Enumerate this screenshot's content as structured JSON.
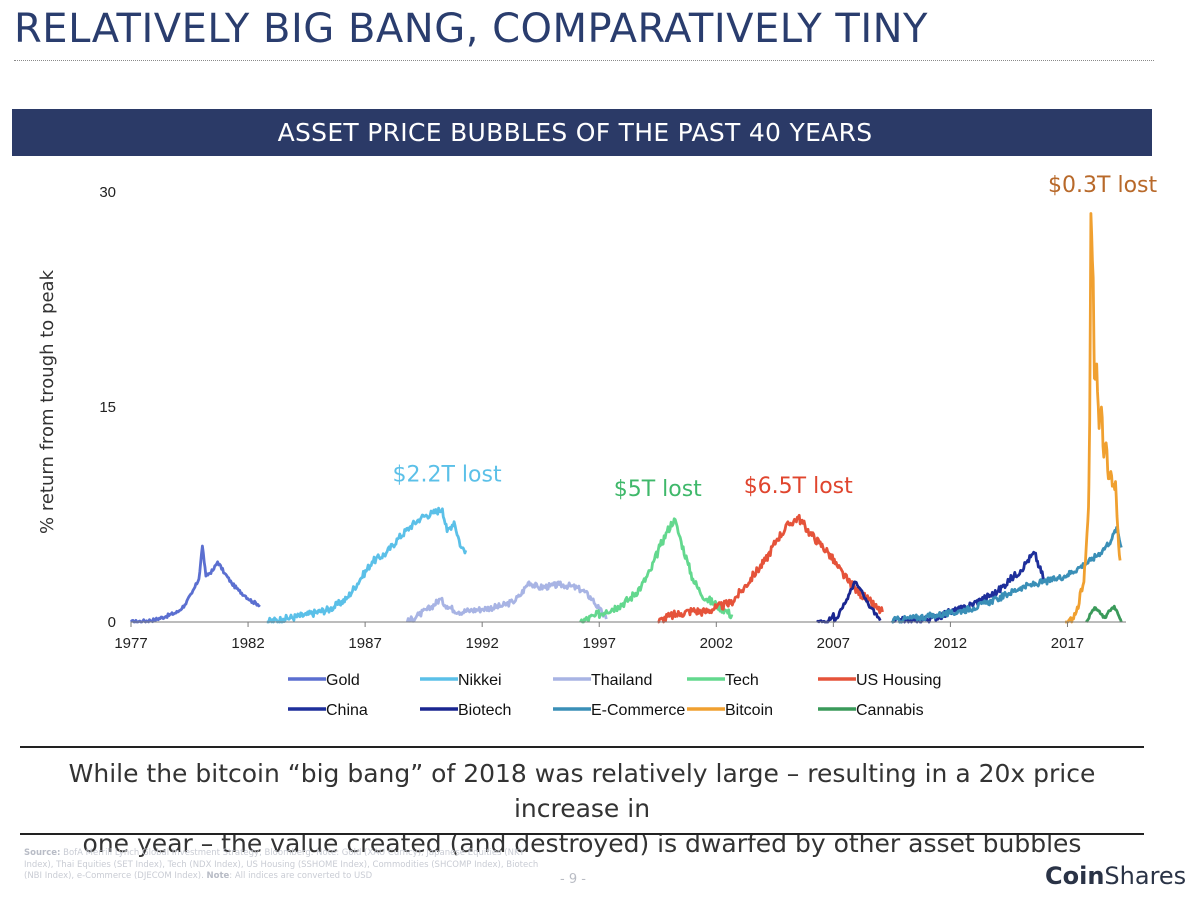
{
  "page": {
    "title": "RELATIVELY BIG BANG, COMPARATIVELY TINY",
    "banner": "ASSET PRICE BUBBLES OF THE PAST 40 YEARS",
    "caption_line1": "While the bitcoin “big bang” of 2018 was relatively large – resulting in a 20x price increase in",
    "caption_line2": "one year – the value created (and destroyed) is dwarfed by other asset bubbles",
    "source_label": "Source:",
    "source_text": "BofA Merrill Lynch Global Investment Strategy, Bloomberg. Note: Gold (XAU Curncy), Japanese Equities (NKY Index), Thai Equities (SET Index), Tech (NDX Index), US Housing (SSHOME Index), Commodities (SHCOMP Index), Biotech (NBI Index), e-Commerce (DJECOM Index).",
    "note_label": "Note",
    "note_text": ": All indices are converted to USD",
    "page_number": "- 9 -",
    "logo_part1": "Coin",
    "logo_part2": "Shares"
  },
  "chart_data": {
    "type": "line",
    "ylabel": "% return from trough to peak",
    "ylim": [
      0,
      30
    ],
    "yticks": [
      0,
      15,
      30
    ],
    "xlim": [
      1977,
      2019.5
    ],
    "xticks": [
      1977,
      1982,
      1987,
      1992,
      1997,
      2002,
      2007,
      2012,
      2017
    ],
    "grid": false,
    "legend_position": "bottom",
    "annotations": [
      {
        "text": "$2.2T lost",
        "x": 1990.5,
        "y": 9.8,
        "color": "#5bc0e8"
      },
      {
        "text": "$5T lost",
        "x": 1999.5,
        "y": 8.8,
        "color": "#3fb86a"
      },
      {
        "text": "$6.5T lost",
        "x": 2005.5,
        "y": 9.0,
        "color": "#e0452e"
      },
      {
        "text": "$0.3T lost",
        "x": 2018.5,
        "y": 30.0,
        "color": "#b8692a"
      }
    ],
    "series": [
      {
        "name": "Gold",
        "color": "#5b6fd0",
        "jitter": 0.12,
        "points": [
          [
            1977.0,
            0.0
          ],
          [
            1977.5,
            0.05
          ],
          [
            1978.0,
            0.15
          ],
          [
            1978.5,
            0.4
          ],
          [
            1979.0,
            0.7
          ],
          [
            1979.3,
            1.2
          ],
          [
            1979.6,
            2.0
          ],
          [
            1979.9,
            3.0
          ],
          [
            1980.05,
            5.3
          ],
          [
            1980.2,
            3.2
          ],
          [
            1980.5,
            3.6
          ],
          [
            1980.7,
            4.2
          ],
          [
            1981.0,
            3.4
          ],
          [
            1981.3,
            2.7
          ],
          [
            1981.6,
            2.2
          ],
          [
            1981.9,
            1.8
          ],
          [
            1982.2,
            1.4
          ],
          [
            1982.5,
            1.2
          ]
        ]
      },
      {
        "name": "Nikkei",
        "color": "#5bc0e8",
        "jitter": 0.25,
        "points": [
          [
            1982.8,
            0.0
          ],
          [
            1983.5,
            0.2
          ],
          [
            1984.5,
            0.5
          ],
          [
            1985.5,
            0.9
          ],
          [
            1986.2,
            1.6
          ],
          [
            1986.8,
            3.0
          ],
          [
            1987.3,
            4.2
          ],
          [
            1987.9,
            4.8
          ],
          [
            1988.4,
            5.8
          ],
          [
            1988.9,
            6.6
          ],
          [
            1989.4,
            7.3
          ],
          [
            1989.9,
            7.6
          ],
          [
            1990.3,
            7.9
          ],
          [
            1990.5,
            6.3
          ],
          [
            1990.8,
            7.0
          ],
          [
            1991.1,
            5.2
          ],
          [
            1991.3,
            5.0
          ]
        ]
      },
      {
        "name": "Thailand",
        "color": "#a8b4e4",
        "jitter": 0.22,
        "points": [
          [
            1988.8,
            0.0
          ],
          [
            1989.3,
            0.5
          ],
          [
            1989.8,
            1.0
          ],
          [
            1990.2,
            1.6
          ],
          [
            1990.5,
            1.1
          ],
          [
            1991.0,
            0.7
          ],
          [
            1991.5,
            0.8
          ],
          [
            1992.0,
            0.9
          ],
          [
            1992.8,
            1.1
          ],
          [
            1993.3,
            1.4
          ],
          [
            1993.6,
            1.8
          ],
          [
            1994.0,
            2.8
          ],
          [
            1994.4,
            2.4
          ],
          [
            1994.9,
            2.5
          ],
          [
            1995.3,
            2.6
          ],
          [
            1995.8,
            2.5
          ],
          [
            1996.3,
            2.2
          ],
          [
            1996.7,
            1.6
          ],
          [
            1997.0,
            0.9
          ],
          [
            1997.3,
            0.2
          ]
        ]
      },
      {
        "name": "Tech",
        "color": "#63d88e",
        "jitter": 0.3,
        "points": [
          [
            1996.2,
            0.0
          ],
          [
            1996.8,
            0.4
          ],
          [
            1997.3,
            0.8
          ],
          [
            1997.8,
            1.1
          ],
          [
            1998.3,
            1.6
          ],
          [
            1998.8,
            2.5
          ],
          [
            1999.2,
            3.6
          ],
          [
            1999.6,
            5.3
          ],
          [
            1999.9,
            6.3
          ],
          [
            2000.2,
            7.2
          ],
          [
            2000.5,
            5.6
          ],
          [
            2000.8,
            4.0
          ],
          [
            2001.0,
            3.0
          ],
          [
            2001.3,
            2.1
          ],
          [
            2001.6,
            1.6
          ],
          [
            2002.0,
            1.2
          ],
          [
            2002.4,
            0.8
          ],
          [
            2002.7,
            0.4
          ]
        ]
      },
      {
        "name": "US Housing",
        "color": "#e5533a",
        "jitter": 0.3,
        "points": [
          [
            1999.5,
            0.0
          ],
          [
            2000.0,
            0.4
          ],
          [
            2000.5,
            0.6
          ],
          [
            2001.0,
            0.8
          ],
          [
            2001.5,
            0.7
          ],
          [
            2002.0,
            1.0
          ],
          [
            2002.6,
            1.3
          ],
          [
            2003.1,
            2.2
          ],
          [
            2003.6,
            3.3
          ],
          [
            2004.1,
            4.3
          ],
          [
            2004.6,
            5.8
          ],
          [
            2005.1,
            6.8
          ],
          [
            2005.5,
            7.3
          ],
          [
            2006.0,
            6.2
          ],
          [
            2006.4,
            5.5
          ],
          [
            2006.8,
            4.8
          ],
          [
            2007.2,
            3.8
          ],
          [
            2007.6,
            2.9
          ],
          [
            2008.0,
            2.2
          ],
          [
            2008.5,
            1.5
          ],
          [
            2008.9,
            0.9
          ],
          [
            2009.1,
            0.7
          ]
        ]
      },
      {
        "name": "China",
        "color": "#1e2f9b",
        "jitter": 0.25,
        "points": [
          [
            2009.5,
            0.0
          ],
          [
            2010.0,
            0.1
          ],
          [
            2010.5,
            0.05
          ],
          [
            2011.0,
            0.2
          ],
          [
            2011.5,
            0.4
          ],
          [
            2012.0,
            0.7
          ],
          [
            2012.5,
            0.9
          ],
          [
            2013.0,
            1.3
          ],
          [
            2013.5,
            1.7
          ],
          [
            2014.0,
            2.1
          ],
          [
            2014.5,
            2.9
          ],
          [
            2015.0,
            3.6
          ],
          [
            2015.3,
            4.3
          ],
          [
            2015.6,
            4.8
          ],
          [
            2015.8,
            3.8
          ],
          [
            2016.0,
            3.0
          ]
        ]
      },
      {
        "name": "Biotech",
        "color": "#1a2690",
        "jitter": 0.15,
        "points": [
          [
            2006.3,
            0.0
          ],
          [
            2006.6,
            0.05
          ],
          [
            2006.8,
            0.1
          ],
          [
            2007.0,
            0.6
          ],
          [
            2007.05,
            0.05
          ],
          [
            2007.4,
            1.0
          ],
          [
            2007.7,
            2.0
          ],
          [
            2007.9,
            2.8
          ],
          [
            2008.1,
            2.4
          ],
          [
            2008.3,
            1.8
          ],
          [
            2008.5,
            1.2
          ],
          [
            2008.8,
            0.6
          ],
          [
            2009.0,
            0.1
          ]
        ]
      },
      {
        "name": "E-Commerce",
        "color": "#3a8fb7",
        "jitter": 0.22,
        "points": [
          [
            2009.5,
            0.1
          ],
          [
            2010.0,
            0.2
          ],
          [
            2010.5,
            0.3
          ],
          [
            2011.0,
            0.4
          ],
          [
            2011.5,
            0.5
          ],
          [
            2012.0,
            0.6
          ],
          [
            2012.5,
            0.8
          ],
          [
            2013.0,
            1.0
          ],
          [
            2013.5,
            1.3
          ],
          [
            2014.0,
            1.6
          ],
          [
            2014.5,
            2.0
          ],
          [
            2015.0,
            2.4
          ],
          [
            2015.5,
            2.6
          ],
          [
            2016.0,
            2.8
          ],
          [
            2016.5,
            3.0
          ],
          [
            2017.0,
            3.3
          ],
          [
            2017.5,
            3.8
          ],
          [
            2018.0,
            4.3
          ],
          [
            2018.5,
            5.0
          ],
          [
            2018.9,
            5.8
          ],
          [
            2019.1,
            6.6
          ],
          [
            2019.3,
            5.2
          ]
        ]
      },
      {
        "name": "Bitcoin",
        "color": "#f0a030",
        "jitter": 0.5,
        "points": [
          [
            2016.9,
            0.0
          ],
          [
            2017.1,
            0.2
          ],
          [
            2017.3,
            0.6
          ],
          [
            2017.5,
            1.3
          ],
          [
            2017.7,
            2.8
          ],
          [
            2017.8,
            5.2
          ],
          [
            2017.9,
            8.0
          ],
          [
            2017.95,
            14.0
          ],
          [
            2018.0,
            28.5
          ],
          [
            2018.1,
            24.0
          ],
          [
            2018.15,
            17.0
          ],
          [
            2018.25,
            18.0
          ],
          [
            2018.35,
            13.5
          ],
          [
            2018.45,
            15.0
          ],
          [
            2018.55,
            11.5
          ],
          [
            2018.65,
            12.5
          ],
          [
            2018.75,
            10.0
          ],
          [
            2018.85,
            10.5
          ],
          [
            2018.95,
            9.5
          ],
          [
            2019.05,
            9.8
          ],
          [
            2019.15,
            6.5
          ],
          [
            2019.25,
            4.3
          ]
        ]
      },
      {
        "name": "Cannabis",
        "color": "#3a9a5a",
        "jitter": 0.1,
        "points": [
          [
            2017.8,
            0.0
          ],
          [
            2018.0,
            0.6
          ],
          [
            2018.2,
            1.0
          ],
          [
            2018.4,
            0.6
          ],
          [
            2018.6,
            0.3
          ],
          [
            2018.8,
            0.8
          ],
          [
            2019.0,
            1.1
          ],
          [
            2019.2,
            0.4
          ],
          [
            2019.3,
            0.0
          ]
        ]
      }
    ]
  }
}
